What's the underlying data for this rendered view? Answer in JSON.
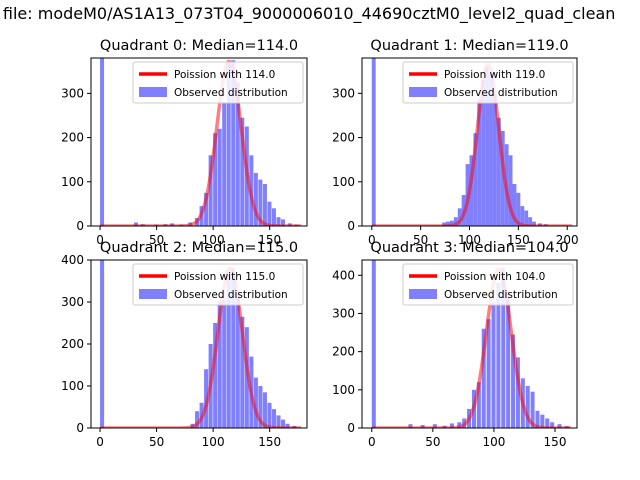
{
  "figure_title": "a file: modeM0/AS1A13_073T04_9000006010_44690cztM0_level2_quad_clean",
  "colors": {
    "fit": "#ff0000",
    "observed": "#8080ff",
    "axes": "#000000"
  },
  "chart_data": [
    {
      "type": "bar",
      "title": "Quadrant 0: Median=114.0",
      "median": 114.0,
      "xlim": [
        -8,
        183
      ],
      "ylim": [
        0,
        380
      ],
      "xticks": [
        0,
        50,
        100,
        150
      ],
      "yticks": [
        0,
        100,
        200,
        300
      ],
      "legend": {
        "placement": "top-right",
        "entries": [
          "Poission with 114.0",
          "Observed distribution"
        ]
      },
      "series": [
        {
          "name": "Poission with 114.0",
          "kind": "line",
          "mean": 114.0,
          "peak": 372
        },
        {
          "name": "Observed distribution",
          "kind": "histogram",
          "bin_width": 3.55,
          "bins": [
            [
              0,
              380
            ],
            [
              30,
              8
            ],
            [
              36,
              4
            ],
            [
              48,
              3
            ],
            [
              56,
              4
            ],
            [
              62,
              6
            ],
            [
              70,
              3
            ],
            [
              78,
              8
            ],
            [
              84,
              18
            ],
            [
              88,
              45
            ],
            [
              92,
              75
            ],
            [
              96,
              160
            ],
            [
              100,
              210
            ],
            [
              104,
              220
            ],
            [
              108,
              280
            ],
            [
              112,
              370
            ],
            [
              116,
              375
            ],
            [
              120,
              325
            ],
            [
              124,
              245
            ],
            [
              128,
              225
            ],
            [
              132,
              160
            ],
            [
              136,
              120
            ],
            [
              140,
              105
            ],
            [
              144,
              95
            ],
            [
              148,
              55
            ],
            [
              152,
              40
            ],
            [
              156,
              20
            ],
            [
              160,
              15
            ],
            [
              166,
              6
            ],
            [
              172,
              3
            ]
          ]
        }
      ]
    },
    {
      "type": "bar",
      "title": "Quadrant 1: Median=119.0",
      "median": 119.0,
      "xlim": [
        -10,
        210
      ],
      "ylim": [
        0,
        380
      ],
      "xticks": [
        0,
        50,
        100,
        150,
        200
      ],
      "yticks": [
        0,
        100,
        200,
        300
      ],
      "legend": {
        "placement": "top-right",
        "entries": [
          "Poission with 119.0",
          "Observed distribution"
        ]
      },
      "series": [
        {
          "name": "Poission with 119.0",
          "kind": "line",
          "mean": 119.0,
          "peak": 365
        },
        {
          "name": "Observed distribution",
          "kind": "histogram",
          "bin_width": 4.0,
          "bins": [
            [
              0,
              380
            ],
            [
              72,
              8
            ],
            [
              76,
              10
            ],
            [
              80,
              12
            ],
            [
              84,
              20
            ],
            [
              88,
              40
            ],
            [
              92,
              70
            ],
            [
              96,
              140
            ],
            [
              100,
              160
            ],
            [
              104,
              210
            ],
            [
              108,
              285
            ],
            [
              112,
              330
            ],
            [
              116,
              360
            ],
            [
              120,
              345
            ],
            [
              124,
              300
            ],
            [
              128,
              245
            ],
            [
              132,
              215
            ],
            [
              136,
              185
            ],
            [
              140,
              160
            ],
            [
              144,
              95
            ],
            [
              148,
              75
            ],
            [
              152,
              45
            ],
            [
              156,
              35
            ],
            [
              160,
              20
            ],
            [
              164,
              10
            ],
            [
              170,
              6
            ],
            [
              176,
              4
            ]
          ]
        }
      ]
    },
    {
      "type": "bar",
      "title": "Quadrant 2: Median=115.0",
      "median": 115.0,
      "xlim": [
        -8,
        183
      ],
      "ylim": [
        0,
        400
      ],
      "xticks": [
        0,
        50,
        100,
        150
      ],
      "yticks": [
        0,
        100,
        200,
        300,
        400
      ],
      "legend": {
        "placement": "top-right",
        "entries": [
          "Poission with 115.0",
          "Observed distribution"
        ]
      },
      "series": [
        {
          "name": "Poission with 115.0",
          "kind": "line",
          "mean": 115.0,
          "peak": 380
        },
        {
          "name": "Observed distribution",
          "kind": "histogram",
          "bin_width": 3.6,
          "bins": [
            [
              0,
              400
            ],
            [
              80,
              10
            ],
            [
              84,
              40
            ],
            [
              88,
              60
            ],
            [
              92,
              140
            ],
            [
              96,
              200
            ],
            [
              100,
              250
            ],
            [
              104,
              300
            ],
            [
              108,
              305
            ],
            [
              112,
              370
            ],
            [
              116,
              380
            ],
            [
              120,
              315
            ],
            [
              124,
              265
            ],
            [
              128,
              240
            ],
            [
              132,
              170
            ],
            [
              136,
              120
            ],
            [
              140,
              100
            ],
            [
              144,
              85
            ],
            [
              148,
              60
            ],
            [
              152,
              45
            ],
            [
              156,
              30
            ],
            [
              160,
              20
            ],
            [
              164,
              10
            ],
            [
              170,
              5
            ]
          ]
        }
      ]
    },
    {
      "type": "bar",
      "title": "Quadrant 3: Median=104.0",
      "median": 104.0,
      "xlim": [
        -8,
        168
      ],
      "ylim": [
        0,
        440
      ],
      "xticks": [
        0,
        50,
        100,
        150
      ],
      "yticks": [
        0,
        100,
        200,
        300,
        400
      ],
      "legend": {
        "placement": "top-right",
        "entries": [
          "Poission with 104.0",
          "Observed distribution"
        ]
      },
      "series": [
        {
          "name": "Poission with 104.0",
          "kind": "line",
          "mean": 104.0,
          "peak": 415
        },
        {
          "name": "Observed distribution",
          "kind": "histogram",
          "bin_width": 3.3,
          "bins": [
            [
              0,
              440
            ],
            [
              30,
              10
            ],
            [
              40,
              8
            ],
            [
              50,
              10
            ],
            [
              58,
              6
            ],
            [
              64,
              12
            ],
            [
              70,
              15
            ],
            [
              74,
              25
            ],
            [
              78,
              50
            ],
            [
              82,
              100
            ],
            [
              86,
              120
            ],
            [
              90,
              260
            ],
            [
              94,
              285
            ],
            [
              98,
              330
            ],
            [
              102,
              380
            ],
            [
              106,
              420
            ],
            [
              110,
              340
            ],
            [
              114,
              245
            ],
            [
              118,
              185
            ],
            [
              122,
              130
            ],
            [
              126,
              110
            ],
            [
              130,
              95
            ],
            [
              134,
              45
            ],
            [
              138,
              35
            ],
            [
              142,
              25
            ],
            [
              146,
              15
            ],
            [
              152,
              10
            ],
            [
              158,
              5
            ]
          ]
        }
      ]
    }
  ]
}
